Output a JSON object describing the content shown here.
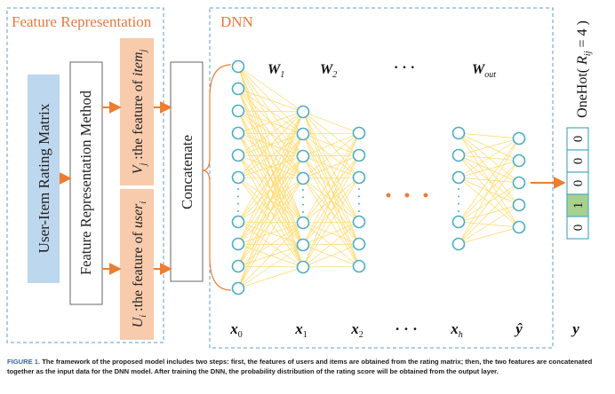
{
  "sections": {
    "feature_representation": "Feature Representation",
    "dnn": "DNN"
  },
  "blocks": {
    "rating_matrix": "User-Item Rating Matrix",
    "method": "Feature Representation Method",
    "concatenate": "Concatenate"
  },
  "features": {
    "item": {
      "symbol": "V",
      "subscript": "j",
      "text": ":the  feature  of",
      "word": "item",
      "word_sub": "j"
    },
    "user": {
      "symbol": "U",
      "subscript": "i",
      "text": ":the  feature  of",
      "word": "user",
      "word_sub": "i"
    }
  },
  "weights": [
    {
      "symbol": "W",
      "subscript": "1"
    },
    {
      "symbol": "W",
      "subscript": "2"
    },
    {
      "symbol": "W",
      "subscript": "out"
    }
  ],
  "weight_ellipsis": "· · ·",
  "layer_labels": [
    {
      "symbol": "x",
      "subscript": "0"
    },
    {
      "symbol": "x",
      "subscript": "1"
    },
    {
      "symbol": "x",
      "subscript": "2"
    },
    {
      "symbol": "",
      "subscript": "",
      "text": "· · ·"
    },
    {
      "symbol": "x",
      "subscript": "h"
    },
    {
      "symbol": "ŷ",
      "subscript": ""
    },
    {
      "symbol": "y",
      "subscript": ""
    }
  ],
  "onehot": {
    "label": "OneHot(",
    "var": "R",
    "var_sub": "ij",
    "eq": "= 4 )",
    "cells": [
      "0",
      "0",
      "0",
      "1",
      "0"
    ],
    "highlight_index": 3
  },
  "colors": {
    "dashed_border": "#5b9bd5",
    "section_title": "#e8793a",
    "rating_fill": "#bdd7ee",
    "feature_fill": "#f8cbad",
    "arrow": "#ed7d31",
    "node_stroke": "#4bacc6",
    "edge": "#ffd966",
    "onehot_green": "#a9d18e"
  },
  "caption": {
    "figure": "FIGURE 1.",
    "text": "The framework of the proposed model includes two steps: first, the features of users and items are obtained from the rating matrix; then, the two features are concatenated together as the input data for the DNN model. After training the DNN, the probability distribution of the rating score will be obtained from the output layer."
  }
}
